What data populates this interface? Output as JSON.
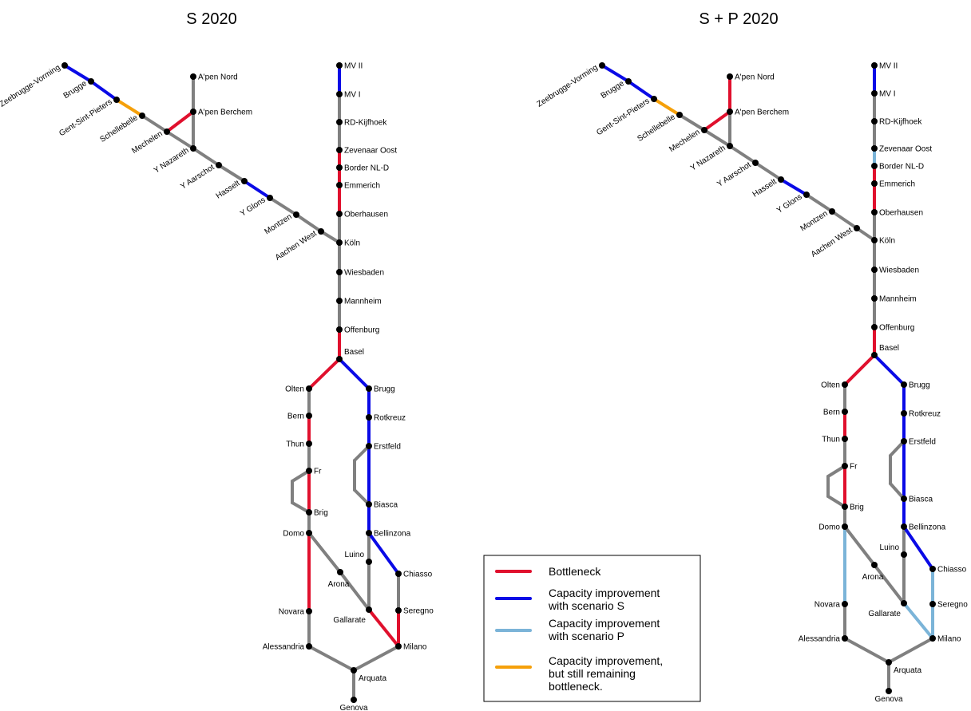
{
  "colors": {
    "normal": "#808080",
    "bottleneck": "#e0102d",
    "scenario_s": "#0a0ae6",
    "scenario_p": "#7bb4d8",
    "remaining": "#f5a00a",
    "station": "#000000"
  },
  "legend": {
    "items": [
      {
        "key": "bottleneck",
        "lines": [
          "Bottleneck"
        ]
      },
      {
        "key": "scenario_s",
        "lines": [
          "Capacity improvement",
          "with scenario S"
        ]
      },
      {
        "key": "scenario_p",
        "lines": [
          "Capacity improvement",
          "with scenario P"
        ]
      },
      {
        "key": "remaining",
        "lines": [
          "Capacity improvement,",
          "but still remaining",
          "bottleneck."
        ]
      }
    ]
  },
  "diagrams": [
    {
      "title": "S 2020",
      "stations": [
        {
          "id": "zeebrugge",
          "label": "Zeebrugge-Vorming"
        },
        {
          "id": "brugge",
          "label": "Brugge"
        },
        {
          "id": "gent",
          "label": "Gent-Sint-Pieters"
        },
        {
          "id": "schellebelle",
          "label": "Schellebelle"
        },
        {
          "id": "mechelen",
          "label": "Mechelen"
        },
        {
          "id": "ynazareth",
          "label": "Y Nazareth"
        },
        {
          "id": "yaarschot",
          "label": "Y Aarschot"
        },
        {
          "id": "hasselt",
          "label": "Hasselt"
        },
        {
          "id": "yglons",
          "label": "Y Glons"
        },
        {
          "id": "montzen",
          "label": "Montzen"
        },
        {
          "id": "aachen",
          "label": "Aachen West"
        },
        {
          "id": "apennord",
          "label": "A'pen Nord"
        },
        {
          "id": "apenberchem",
          "label": "A'pen Berchem"
        },
        {
          "id": "mv2",
          "label": "MV II"
        },
        {
          "id": "mv1",
          "label": "MV I"
        },
        {
          "id": "rdkijf",
          "label": "RD-Kijfhoek"
        },
        {
          "id": "zevenaar",
          "label": "Zevenaar Oost"
        },
        {
          "id": "border",
          "label": "Border NL-D"
        },
        {
          "id": "emmerich",
          "label": "Emmerich"
        },
        {
          "id": "oberhausen",
          "label": "Oberhausen"
        },
        {
          "id": "koln",
          "label": "Köln"
        },
        {
          "id": "wiesbaden",
          "label": "Wiesbaden"
        },
        {
          "id": "mannheim",
          "label": "Mannheim"
        },
        {
          "id": "offenburg",
          "label": "Offenburg"
        },
        {
          "id": "basel",
          "label": "Basel"
        },
        {
          "id": "olten",
          "label": "Olten"
        },
        {
          "id": "bern",
          "label": "Bern"
        },
        {
          "id": "thun",
          "label": "Thun"
        },
        {
          "id": "fr",
          "label": "Fr"
        },
        {
          "id": "brig",
          "label": "Brig"
        },
        {
          "id": "domo",
          "label": "Domo"
        },
        {
          "id": "novara",
          "label": "Novara"
        },
        {
          "id": "alessandria",
          "label": "Alessandria"
        },
        {
          "id": "arquata",
          "label": "Arquata"
        },
        {
          "id": "genova",
          "label": "Genova"
        },
        {
          "id": "brugg",
          "label": "Brugg"
        },
        {
          "id": "rotkreuz",
          "label": "Rotkreuz"
        },
        {
          "id": "erstfeld",
          "label": "Erstfeld"
        },
        {
          "id": "biasca",
          "label": "Biasca"
        },
        {
          "id": "bellinzona",
          "label": "Bellinzona"
        },
        {
          "id": "luino",
          "label": "Luino"
        },
        {
          "id": "arona",
          "label": "Arona"
        },
        {
          "id": "gallarate",
          "label": "Gallarate"
        },
        {
          "id": "chiasso",
          "label": "Chiasso"
        },
        {
          "id": "seregno",
          "label": "Seregno"
        },
        {
          "id": "milano",
          "label": "Milano"
        }
      ],
      "segments": [
        {
          "from": "zeebrugge",
          "to": "brugge",
          "status": "scenario_s"
        },
        {
          "from": "brugge",
          "to": "gent",
          "status": "scenario_s"
        },
        {
          "from": "gent",
          "to": "schellebelle",
          "status": "remaining"
        },
        {
          "from": "schellebelle",
          "to": "mechelen",
          "status": "normal"
        },
        {
          "from": "mechelen",
          "to": "apenberchem",
          "status": "bottleneck"
        },
        {
          "from": "apennord",
          "to": "apenberchem",
          "status": "normal"
        },
        {
          "from": "apenberchem",
          "to": "ynazareth",
          "status": "normal"
        },
        {
          "from": "mechelen",
          "to": "ynazareth",
          "status": "normal"
        },
        {
          "from": "ynazareth",
          "to": "yaarschot",
          "status": "normal"
        },
        {
          "from": "yaarschot",
          "to": "hasselt",
          "status": "normal"
        },
        {
          "from": "hasselt",
          "to": "yglons",
          "status": "scenario_s"
        },
        {
          "from": "yglons",
          "to": "montzen",
          "status": "normal"
        },
        {
          "from": "montzen",
          "to": "aachen",
          "status": "normal"
        },
        {
          "from": "aachen",
          "to": "koln",
          "status": "normal"
        },
        {
          "from": "mv2",
          "to": "mv1",
          "status": "scenario_s"
        },
        {
          "from": "mv1",
          "to": "rdkijf",
          "status": "normal"
        },
        {
          "from": "rdkijf",
          "to": "zevenaar",
          "status": "normal"
        },
        {
          "from": "zevenaar",
          "to": "border",
          "status": "bottleneck"
        },
        {
          "from": "border",
          "to": "emmerich",
          "status": "bottleneck"
        },
        {
          "from": "emmerich",
          "to": "oberhausen",
          "status": "bottleneck"
        },
        {
          "from": "oberhausen",
          "to": "koln",
          "status": "normal"
        },
        {
          "from": "koln",
          "to": "wiesbaden",
          "status": "normal"
        },
        {
          "from": "wiesbaden",
          "to": "mannheim",
          "status": "normal"
        },
        {
          "from": "mannheim",
          "to": "offenburg",
          "status": "normal"
        },
        {
          "from": "offenburg",
          "to": "basel",
          "status": "bottleneck"
        },
        {
          "from": "basel",
          "to": "olten",
          "status": "bottleneck"
        },
        {
          "from": "olten",
          "to": "bern",
          "status": "normal"
        },
        {
          "from": "bern",
          "to": "thun",
          "status": "bottleneck"
        },
        {
          "from": "thun",
          "to": "fr",
          "status": "normal"
        },
        {
          "from": "fr",
          "to": "brig",
          "status": "bottleneck"
        },
        {
          "from": "fr",
          "to": "fr_loop_a",
          "status": "normal"
        },
        {
          "from": "fr_loop_a",
          "to": "fr_loop_b",
          "status": "normal"
        },
        {
          "from": "fr_loop_b",
          "to": "brig",
          "status": "normal"
        },
        {
          "from": "brig",
          "to": "domo",
          "status": "normal"
        },
        {
          "from": "domo",
          "to": "novara",
          "status": "bottleneck"
        },
        {
          "from": "novara",
          "to": "alessandria",
          "status": "normal"
        },
        {
          "from": "alessandria",
          "to": "arquata",
          "status": "normal"
        },
        {
          "from": "arquata",
          "to": "genova",
          "status": "normal"
        },
        {
          "from": "arquata",
          "to": "milano",
          "status": "normal"
        },
        {
          "from": "domo",
          "to": "arona",
          "status": "normal"
        },
        {
          "from": "arona",
          "to": "gallarate",
          "status": "normal"
        },
        {
          "from": "basel",
          "to": "brugg",
          "status": "scenario_s"
        },
        {
          "from": "brugg",
          "to": "rotkreuz",
          "status": "scenario_s"
        },
        {
          "from": "rotkreuz",
          "to": "erstfeld",
          "status": "scenario_s"
        },
        {
          "from": "erstfeld",
          "to": "biasca",
          "status": "scenario_s"
        },
        {
          "from": "erstfeld",
          "to": "er_loop_a",
          "status": "normal"
        },
        {
          "from": "er_loop_a",
          "to": "er_loop_b",
          "status": "normal"
        },
        {
          "from": "er_loop_b",
          "to": "biasca",
          "status": "normal"
        },
        {
          "from": "biasca",
          "to": "bellinzona",
          "status": "scenario_s"
        },
        {
          "from": "bellinzona",
          "to": "luino",
          "status": "normal"
        },
        {
          "from": "luino",
          "to": "gallarate",
          "status": "normal"
        },
        {
          "from": "bellinzona",
          "to": "chiasso",
          "status": "scenario_s"
        },
        {
          "from": "chiasso",
          "to": "seregno",
          "status": "normal"
        },
        {
          "from": "seregno",
          "to": "milano",
          "status": "bottleneck"
        },
        {
          "from": "gallarate",
          "to": "milano",
          "status": "bottleneck"
        }
      ]
    },
    {
      "title": "S + P 2020",
      "stations": [
        {
          "id": "zeebrugge",
          "label": "Zeebrugge-Vorming"
        },
        {
          "id": "brugge",
          "label": "Brugge"
        },
        {
          "id": "gent",
          "label": "Gent-Sint-Pieters"
        },
        {
          "id": "schellebelle",
          "label": "Schellebelle"
        },
        {
          "id": "mechelen",
          "label": "Mechelen"
        },
        {
          "id": "ynazareth",
          "label": "Y Nazareth"
        },
        {
          "id": "yaarschot",
          "label": "Y Aarschot"
        },
        {
          "id": "hasselt",
          "label": "Hasselt"
        },
        {
          "id": "yglons",
          "label": "Y Glons"
        },
        {
          "id": "montzen",
          "label": "Montzen"
        },
        {
          "id": "aachen",
          "label": "Aachen West"
        },
        {
          "id": "apennord",
          "label": "A'pen Nord"
        },
        {
          "id": "apenberchem",
          "label": "A'pen Berchem"
        },
        {
          "id": "mv2",
          "label": "MV II"
        },
        {
          "id": "mv1",
          "label": "MV I"
        },
        {
          "id": "rdkijf",
          "label": "RD-Kijfhoek"
        },
        {
          "id": "zevenaar",
          "label": "Zevenaar Oost"
        },
        {
          "id": "border",
          "label": "Border NL-D"
        },
        {
          "id": "emmerich",
          "label": "Emmerich"
        },
        {
          "id": "oberhausen",
          "label": "Oberhausen"
        },
        {
          "id": "koln",
          "label": "Köln"
        },
        {
          "id": "wiesbaden",
          "label": "Wiesbaden"
        },
        {
          "id": "mannheim",
          "label": "Mannheim"
        },
        {
          "id": "offenburg",
          "label": "Offenburg"
        },
        {
          "id": "basel",
          "label": "Basel"
        },
        {
          "id": "olten",
          "label": "Olten"
        },
        {
          "id": "bern",
          "label": "Bern"
        },
        {
          "id": "thun",
          "label": "Thun"
        },
        {
          "id": "fr",
          "label": "Fr"
        },
        {
          "id": "brig",
          "label": "Brig"
        },
        {
          "id": "domo",
          "label": "Domo"
        },
        {
          "id": "novara",
          "label": "Novara"
        },
        {
          "id": "alessandria",
          "label": "Alessandria"
        },
        {
          "id": "arquata",
          "label": "Arquata"
        },
        {
          "id": "genova",
          "label": "Genova"
        },
        {
          "id": "brugg",
          "label": "Brugg"
        },
        {
          "id": "rotkreuz",
          "label": "Rotkreuz"
        },
        {
          "id": "erstfeld",
          "label": "Erstfeld"
        },
        {
          "id": "biasca",
          "label": "Biasca"
        },
        {
          "id": "bellinzona",
          "label": "Bellinzona"
        },
        {
          "id": "luino",
          "label": "Luino"
        },
        {
          "id": "arona",
          "label": "Arona"
        },
        {
          "id": "gallarate",
          "label": "Gallarate"
        },
        {
          "id": "chiasso",
          "label": "Chiasso"
        },
        {
          "id": "seregno",
          "label": "Seregno"
        },
        {
          "id": "milano",
          "label": "Milano"
        }
      ],
      "segments": [
        {
          "from": "zeebrugge",
          "to": "brugge",
          "status": "scenario_s"
        },
        {
          "from": "brugge",
          "to": "gent",
          "status": "scenario_s"
        },
        {
          "from": "gent",
          "to": "schellebelle",
          "status": "remaining"
        },
        {
          "from": "schellebelle",
          "to": "mechelen",
          "status": "normal"
        },
        {
          "from": "mechelen",
          "to": "apenberchem",
          "status": "bottleneck"
        },
        {
          "from": "apennord",
          "to": "apenberchem",
          "status": "bottleneck"
        },
        {
          "from": "apenberchem",
          "to": "ynazareth",
          "status": "normal"
        },
        {
          "from": "mechelen",
          "to": "ynazareth",
          "status": "normal"
        },
        {
          "from": "ynazareth",
          "to": "yaarschot",
          "status": "normal"
        },
        {
          "from": "yaarschot",
          "to": "hasselt",
          "status": "normal"
        },
        {
          "from": "hasselt",
          "to": "yglons",
          "status": "scenario_s"
        },
        {
          "from": "yglons",
          "to": "montzen",
          "status": "normal"
        },
        {
          "from": "montzen",
          "to": "aachen",
          "status": "normal"
        },
        {
          "from": "aachen",
          "to": "koln",
          "status": "normal"
        },
        {
          "from": "mv2",
          "to": "mv1",
          "status": "scenario_s"
        },
        {
          "from": "mv1",
          "to": "rdkijf",
          "status": "normal"
        },
        {
          "from": "rdkijf",
          "to": "zevenaar",
          "status": "normal"
        },
        {
          "from": "zevenaar",
          "to": "border",
          "status": "scenario_p"
        },
        {
          "from": "border",
          "to": "emmerich",
          "status": "bottleneck"
        },
        {
          "from": "emmerich",
          "to": "oberhausen",
          "status": "bottleneck"
        },
        {
          "from": "oberhausen",
          "to": "koln",
          "status": "normal"
        },
        {
          "from": "koln",
          "to": "wiesbaden",
          "status": "normal"
        },
        {
          "from": "wiesbaden",
          "to": "mannheim",
          "status": "normal"
        },
        {
          "from": "mannheim",
          "to": "offenburg",
          "status": "normal"
        },
        {
          "from": "offenburg",
          "to": "basel",
          "status": "bottleneck"
        },
        {
          "from": "basel",
          "to": "olten",
          "status": "bottleneck"
        },
        {
          "from": "olten",
          "to": "bern",
          "status": "normal"
        },
        {
          "from": "bern",
          "to": "thun",
          "status": "bottleneck"
        },
        {
          "from": "thun",
          "to": "fr",
          "status": "normal"
        },
        {
          "from": "fr",
          "to": "brig",
          "status": "bottleneck"
        },
        {
          "from": "fr",
          "to": "fr_loop_a",
          "status": "normal"
        },
        {
          "from": "fr_loop_a",
          "to": "fr_loop_b",
          "status": "normal"
        },
        {
          "from": "fr_loop_b",
          "to": "brig",
          "status": "normal"
        },
        {
          "from": "brig",
          "to": "domo",
          "status": "normal"
        },
        {
          "from": "domo",
          "to": "novara",
          "status": "scenario_p"
        },
        {
          "from": "novara",
          "to": "alessandria",
          "status": "normal"
        },
        {
          "from": "alessandria",
          "to": "arquata",
          "status": "normal"
        },
        {
          "from": "arquata",
          "to": "genova",
          "status": "normal"
        },
        {
          "from": "arquata",
          "to": "milano",
          "status": "normal"
        },
        {
          "from": "domo",
          "to": "arona",
          "status": "normal"
        },
        {
          "from": "arona",
          "to": "gallarate",
          "status": "normal"
        },
        {
          "from": "basel",
          "to": "brugg",
          "status": "scenario_s"
        },
        {
          "from": "brugg",
          "to": "rotkreuz",
          "status": "scenario_s"
        },
        {
          "from": "rotkreuz",
          "to": "erstfeld",
          "status": "scenario_s"
        },
        {
          "from": "erstfeld",
          "to": "biasca",
          "status": "scenario_s"
        },
        {
          "from": "erstfeld",
          "to": "er_loop_a",
          "status": "normal"
        },
        {
          "from": "er_loop_a",
          "to": "er_loop_b",
          "status": "normal"
        },
        {
          "from": "er_loop_b",
          "to": "biasca",
          "status": "normal"
        },
        {
          "from": "biasca",
          "to": "bellinzona",
          "status": "scenario_s"
        },
        {
          "from": "bellinzona",
          "to": "luino",
          "status": "normal"
        },
        {
          "from": "luino",
          "to": "gallarate",
          "status": "normal"
        },
        {
          "from": "bellinzona",
          "to": "chiasso",
          "status": "scenario_s"
        },
        {
          "from": "chiasso",
          "to": "seregno",
          "status": "scenario_p"
        },
        {
          "from": "seregno",
          "to": "milano",
          "status": "scenario_p"
        },
        {
          "from": "gallarate",
          "to": "milano",
          "status": "scenario_p"
        }
      ]
    }
  ]
}
